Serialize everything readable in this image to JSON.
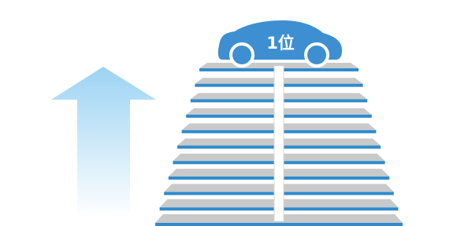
{
  "car": {
    "label": "1位"
  }
}
